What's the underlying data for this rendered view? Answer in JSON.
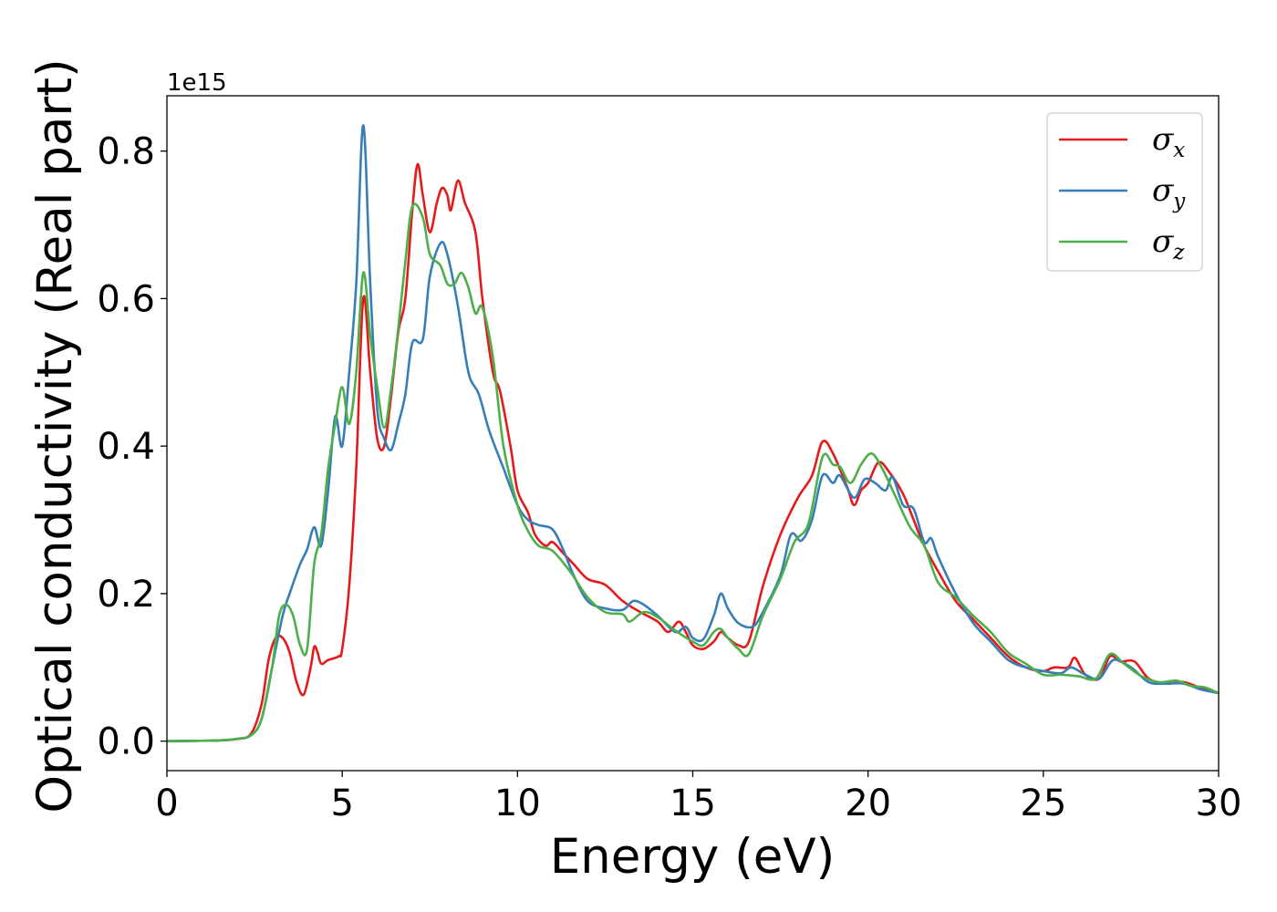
{
  "chart_data": {
    "type": "line",
    "xlabel": "Energy (eV)",
    "ylabel": "Optical conductivity (Real part)",
    "offset_text": "1e15",
    "xlim": [
      0,
      30
    ],
    "ylim": [
      -0.04,
      0.875
    ],
    "y_scale_multiplier": 1000000000000000.0,
    "grid": false,
    "legend_position": "top-right",
    "x_ticks": [
      0,
      5,
      10,
      15,
      20,
      25,
      30
    ],
    "x_tick_labels": [
      "0",
      "5",
      "10",
      "15",
      "20",
      "25",
      "30"
    ],
    "y_ticks": [
      0.0,
      0.2,
      0.4,
      0.6,
      0.8
    ],
    "y_tick_labels": [
      "0.0",
      "0.2",
      "0.4",
      "0.6",
      "0.8"
    ],
    "series": [
      {
        "name": "σx",
        "legend": {
          "base": "σ",
          "sub": "x"
        },
        "color": "#e41a1c",
        "points": [
          [
            0,
            0.0
          ],
          [
            1,
            0.0005
          ],
          [
            1.5,
            0.001
          ],
          [
            2,
            0.003
          ],
          [
            2.4,
            0.01
          ],
          [
            2.7,
            0.05
          ],
          [
            2.9,
            0.11
          ],
          [
            3.1,
            0.14
          ],
          [
            3.3,
            0.14
          ],
          [
            3.5,
            0.12
          ],
          [
            3.7,
            0.08
          ],
          [
            3.9,
            0.063
          ],
          [
            4.1,
            0.1
          ],
          [
            4.2,
            0.128
          ],
          [
            4.3,
            0.12
          ],
          [
            4.4,
            0.105
          ],
          [
            4.6,
            0.11
          ],
          [
            4.9,
            0.115
          ],
          [
            5.0,
            0.125
          ],
          [
            5.2,
            0.21
          ],
          [
            5.4,
            0.37
          ],
          [
            5.6,
            0.6
          ],
          [
            5.8,
            0.5
          ],
          [
            6.0,
            0.41
          ],
          [
            6.2,
            0.4
          ],
          [
            6.4,
            0.47
          ],
          [
            6.6,
            0.555
          ],
          [
            6.8,
            0.6
          ],
          [
            7.0,
            0.72
          ],
          [
            7.15,
            0.782
          ],
          [
            7.3,
            0.74
          ],
          [
            7.5,
            0.69
          ],
          [
            7.7,
            0.73
          ],
          [
            7.85,
            0.75
          ],
          [
            8.0,
            0.74
          ],
          [
            8.1,
            0.72
          ],
          [
            8.3,
            0.76
          ],
          [
            8.5,
            0.73
          ],
          [
            8.8,
            0.69
          ],
          [
            9.0,
            0.6
          ],
          [
            9.3,
            0.5
          ],
          [
            9.5,
            0.475
          ],
          [
            9.8,
            0.4
          ],
          [
            10.0,
            0.34
          ],
          [
            10.3,
            0.31
          ],
          [
            10.5,
            0.28
          ],
          [
            10.8,
            0.265
          ],
          [
            11.0,
            0.27
          ],
          [
            11.3,
            0.255
          ],
          [
            11.6,
            0.24
          ],
          [
            12.0,
            0.22
          ],
          [
            12.5,
            0.212
          ],
          [
            13.0,
            0.19
          ],
          [
            13.5,
            0.175
          ],
          [
            14.0,
            0.162
          ],
          [
            14.3,
            0.148
          ],
          [
            14.6,
            0.162
          ],
          [
            14.8,
            0.148
          ],
          [
            15.0,
            0.13
          ],
          [
            15.3,
            0.125
          ],
          [
            15.6,
            0.135
          ],
          [
            15.8,
            0.148
          ],
          [
            16.0,
            0.14
          ],
          [
            16.3,
            0.13
          ],
          [
            16.6,
            0.135
          ],
          [
            17.0,
            0.21
          ],
          [
            17.5,
            0.28
          ],
          [
            18.0,
            0.33
          ],
          [
            18.4,
            0.36
          ],
          [
            18.7,
            0.406
          ],
          [
            19.0,
            0.39
          ],
          [
            19.4,
            0.345
          ],
          [
            19.6,
            0.32
          ],
          [
            19.8,
            0.34
          ],
          [
            20.0,
            0.35
          ],
          [
            20.3,
            0.378
          ],
          [
            20.6,
            0.365
          ],
          [
            21.0,
            0.335
          ],
          [
            21.3,
            0.3
          ],
          [
            21.6,
            0.265
          ],
          [
            22.0,
            0.23
          ],
          [
            22.5,
            0.19
          ],
          [
            23.0,
            0.165
          ],
          [
            23.5,
            0.14
          ],
          [
            24.0,
            0.115
          ],
          [
            24.5,
            0.1
          ],
          [
            25.0,
            0.095
          ],
          [
            25.3,
            0.1
          ],
          [
            25.7,
            0.1
          ],
          [
            25.9,
            0.113
          ],
          [
            26.2,
            0.09
          ],
          [
            26.6,
            0.085
          ],
          [
            26.9,
            0.115
          ],
          [
            27.2,
            0.108
          ],
          [
            27.6,
            0.108
          ],
          [
            28.0,
            0.085
          ],
          [
            28.5,
            0.078
          ],
          [
            29.0,
            0.08
          ],
          [
            29.5,
            0.072
          ],
          [
            30.0,
            0.065
          ]
        ]
      },
      {
        "name": "σy",
        "legend": {
          "base": "σ",
          "sub": "y"
        },
        "color": "#377eb8",
        "points": [
          [
            0,
            0.0
          ],
          [
            1,
            0.0005
          ],
          [
            1.5,
            0.001
          ],
          [
            2,
            0.003
          ],
          [
            2.4,
            0.008
          ],
          [
            2.7,
            0.03
          ],
          [
            3.0,
            0.1
          ],
          [
            3.3,
            0.17
          ],
          [
            3.5,
            0.2
          ],
          [
            3.8,
            0.24
          ],
          [
            4.0,
            0.26
          ],
          [
            4.2,
            0.29
          ],
          [
            4.4,
            0.265
          ],
          [
            4.6,
            0.34
          ],
          [
            4.8,
            0.44
          ],
          [
            5.0,
            0.4
          ],
          [
            5.2,
            0.5
          ],
          [
            5.4,
            0.62
          ],
          [
            5.6,
            0.835
          ],
          [
            5.8,
            0.62
          ],
          [
            6.0,
            0.45
          ],
          [
            6.2,
            0.41
          ],
          [
            6.4,
            0.395
          ],
          [
            6.6,
            0.43
          ],
          [
            6.8,
            0.47
          ],
          [
            7.0,
            0.54
          ],
          [
            7.3,
            0.545
          ],
          [
            7.5,
            0.63
          ],
          [
            7.8,
            0.675
          ],
          [
            8.0,
            0.66
          ],
          [
            8.3,
            0.59
          ],
          [
            8.6,
            0.5
          ],
          [
            8.9,
            0.47
          ],
          [
            9.2,
            0.42
          ],
          [
            9.6,
            0.37
          ],
          [
            10.0,
            0.32
          ],
          [
            10.3,
            0.3
          ],
          [
            10.6,
            0.293
          ],
          [
            11.0,
            0.287
          ],
          [
            11.3,
            0.26
          ],
          [
            11.6,
            0.225
          ],
          [
            12.0,
            0.19
          ],
          [
            12.5,
            0.18
          ],
          [
            13.0,
            0.178
          ],
          [
            13.3,
            0.19
          ],
          [
            13.6,
            0.185
          ],
          [
            14.0,
            0.17
          ],
          [
            14.5,
            0.148
          ],
          [
            14.8,
            0.155
          ],
          [
            15.0,
            0.14
          ],
          [
            15.3,
            0.138
          ],
          [
            15.6,
            0.17
          ],
          [
            15.8,
            0.2
          ],
          [
            16.0,
            0.18
          ],
          [
            16.3,
            0.16
          ],
          [
            16.7,
            0.155
          ],
          [
            17.0,
            0.175
          ],
          [
            17.5,
            0.225
          ],
          [
            17.8,
            0.28
          ],
          [
            18.1,
            0.272
          ],
          [
            18.4,
            0.3
          ],
          [
            18.7,
            0.36
          ],
          [
            19.0,
            0.35
          ],
          [
            19.2,
            0.36
          ],
          [
            19.6,
            0.33
          ],
          [
            19.9,
            0.355
          ],
          [
            20.2,
            0.35
          ],
          [
            20.5,
            0.34
          ],
          [
            20.7,
            0.358
          ],
          [
            21.0,
            0.32
          ],
          [
            21.3,
            0.315
          ],
          [
            21.6,
            0.27
          ],
          [
            21.8,
            0.275
          ],
          [
            22.0,
            0.25
          ],
          [
            22.5,
            0.2
          ],
          [
            23.0,
            0.16
          ],
          [
            23.5,
            0.135
          ],
          [
            24.0,
            0.11
          ],
          [
            24.5,
            0.1
          ],
          [
            25.0,
            0.095
          ],
          [
            25.5,
            0.092
          ],
          [
            25.8,
            0.1
          ],
          [
            26.2,
            0.09
          ],
          [
            26.6,
            0.085
          ],
          [
            27.0,
            0.11
          ],
          [
            27.5,
            0.1
          ],
          [
            28.0,
            0.08
          ],
          [
            28.5,
            0.078
          ],
          [
            29.0,
            0.078
          ],
          [
            29.5,
            0.07
          ],
          [
            30.0,
            0.065
          ]
        ]
      },
      {
        "name": "σz",
        "legend": {
          "base": "σ",
          "sub": "z"
        },
        "color": "#4daf4a",
        "points": [
          [
            0,
            0.0
          ],
          [
            1,
            0.0005
          ],
          [
            1.5,
            0.001
          ],
          [
            2,
            0.003
          ],
          [
            2.4,
            0.008
          ],
          [
            2.7,
            0.03
          ],
          [
            3.0,
            0.1
          ],
          [
            3.2,
            0.17
          ],
          [
            3.4,
            0.185
          ],
          [
            3.6,
            0.17
          ],
          [
            3.8,
            0.13
          ],
          [
            4.0,
            0.125
          ],
          [
            4.2,
            0.24
          ],
          [
            4.4,
            0.28
          ],
          [
            4.6,
            0.37
          ],
          [
            4.8,
            0.43
          ],
          [
            5.0,
            0.48
          ],
          [
            5.2,
            0.43
          ],
          [
            5.4,
            0.5
          ],
          [
            5.6,
            0.635
          ],
          [
            5.8,
            0.55
          ],
          [
            6.0,
            0.48
          ],
          [
            6.2,
            0.425
          ],
          [
            6.4,
            0.48
          ],
          [
            6.6,
            0.56
          ],
          [
            6.8,
            0.65
          ],
          [
            7.0,
            0.725
          ],
          [
            7.3,
            0.71
          ],
          [
            7.5,
            0.66
          ],
          [
            7.8,
            0.645
          ],
          [
            8.0,
            0.62
          ],
          [
            8.2,
            0.62
          ],
          [
            8.4,
            0.635
          ],
          [
            8.6,
            0.615
          ],
          [
            8.8,
            0.58
          ],
          [
            9.0,
            0.588
          ],
          [
            9.3,
            0.52
          ],
          [
            9.6,
            0.4
          ],
          [
            10.0,
            0.32
          ],
          [
            10.3,
            0.285
          ],
          [
            10.6,
            0.265
          ],
          [
            11.0,
            0.258
          ],
          [
            11.5,
            0.23
          ],
          [
            12.0,
            0.195
          ],
          [
            12.5,
            0.175
          ],
          [
            13.0,
            0.172
          ],
          [
            13.2,
            0.162
          ],
          [
            13.6,
            0.175
          ],
          [
            14.0,
            0.168
          ],
          [
            14.5,
            0.15
          ],
          [
            15.0,
            0.135
          ],
          [
            15.3,
            0.13
          ],
          [
            15.6,
            0.148
          ],
          [
            15.8,
            0.152
          ],
          [
            16.0,
            0.14
          ],
          [
            16.3,
            0.125
          ],
          [
            16.6,
            0.118
          ],
          [
            17.0,
            0.17
          ],
          [
            17.5,
            0.22
          ],
          [
            17.9,
            0.27
          ],
          [
            18.3,
            0.295
          ],
          [
            18.7,
            0.385
          ],
          [
            19.0,
            0.375
          ],
          [
            19.2,
            0.372
          ],
          [
            19.5,
            0.35
          ],
          [
            19.8,
            0.375
          ],
          [
            20.1,
            0.39
          ],
          [
            20.4,
            0.37
          ],
          [
            20.8,
            0.33
          ],
          [
            21.2,
            0.29
          ],
          [
            21.6,
            0.265
          ],
          [
            22.0,
            0.215
          ],
          [
            22.5,
            0.195
          ],
          [
            23.0,
            0.17
          ],
          [
            23.5,
            0.148
          ],
          [
            24.0,
            0.12
          ],
          [
            24.5,
            0.105
          ],
          [
            25.0,
            0.09
          ],
          [
            25.5,
            0.09
          ],
          [
            26.0,
            0.088
          ],
          [
            26.5,
            0.085
          ],
          [
            26.9,
            0.118
          ],
          [
            27.3,
            0.105
          ],
          [
            27.8,
            0.088
          ],
          [
            28.3,
            0.08
          ],
          [
            28.8,
            0.082
          ],
          [
            29.2,
            0.075
          ],
          [
            29.6,
            0.073
          ],
          [
            30.0,
            0.065
          ]
        ]
      }
    ]
  }
}
